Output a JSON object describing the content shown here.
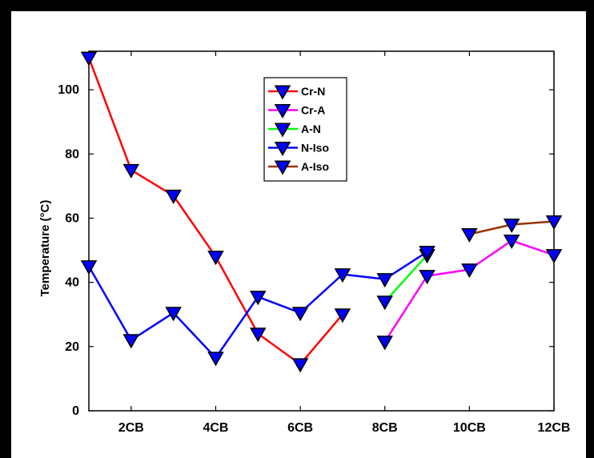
{
  "chart_data": {
    "type": "line",
    "title": "",
    "xlabel": "",
    "ylabel": "Temperature (°C)",
    "xlim": [
      1,
      12
    ],
    "ylim": [
      0,
      112
    ],
    "x_ticks": [
      2,
      4,
      6,
      8,
      10,
      12
    ],
    "x_tick_labels": [
      "2CB",
      "4CB",
      "6CB",
      "8CB",
      "10CB",
      "12CB"
    ],
    "y_ticks": [
      0,
      20,
      40,
      60,
      80,
      100
    ],
    "y_tick_labels": [
      "0",
      "20",
      "40",
      "60",
      "80",
      "100"
    ],
    "legend_position": "top-center",
    "grid": false,
    "series": [
      {
        "name": "Cr-N",
        "color": "#ff0000",
        "segments": [
          [
            [
              1,
              110
            ],
            [
              2,
              75
            ],
            [
              3,
              67
            ],
            [
              4,
              48
            ],
            [
              5,
              24
            ],
            [
              6,
              14.5
            ],
            [
              7,
              30
            ]
          ]
        ]
      },
      {
        "name": "Cr-A",
        "color": "#ff00ff",
        "segments": [
          [
            [
              8,
              21.5
            ],
            [
              9,
              42
            ],
            [
              10,
              44
            ],
            [
              11,
              53
            ],
            [
              12,
              48.5
            ]
          ]
        ]
      },
      {
        "name": "A-N",
        "color": "#00ff00",
        "segments": [
          [
            [
              8,
              34
            ],
            [
              9,
              48.5
            ]
          ]
        ]
      },
      {
        "name": "N-Iso",
        "color": "#0000ff",
        "segments": [
          [
            [
              1,
              45
            ],
            [
              2,
              22
            ],
            [
              3,
              30.5
            ],
            [
              4,
              16.5
            ],
            [
              5,
              35.5
            ],
            [
              6,
              30.5
            ],
            [
              7,
              42.5
            ],
            [
              8,
              41
            ],
            [
              9,
              49.5
            ]
          ]
        ]
      },
      {
        "name": "A-Iso",
        "color": "#993300",
        "segments": [
          [
            [
              10,
              55
            ],
            [
              11,
              58
            ],
            [
              12,
              59
            ]
          ]
        ]
      }
    ],
    "marker": {
      "shape": "down-triangle",
      "fill": "#0000ff",
      "edge": "#000000"
    }
  }
}
